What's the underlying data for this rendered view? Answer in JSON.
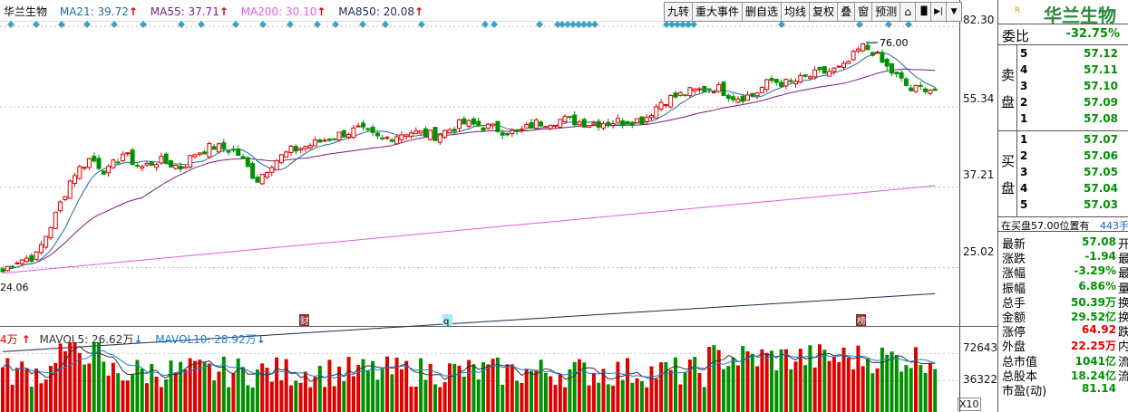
{
  "stock_name": "华兰生物",
  "legend": {
    "name": "华兰生物",
    "ma21": "MA21: 39.72",
    "ma55": "MA55: 37.71",
    "ma200": "MA200: 30.10",
    "ma850": "MA850: 20.08",
    "arrow": "↑",
    "colors": {
      "ma21": "#1a6f9b",
      "ma55": "#7a1d7a",
      "ma200": "#e55ce5",
      "ma850": "#1c2a56"
    }
  },
  "vol_legend": {
    "prefix": "4万",
    "mavol5": "MAVOL5: 26.62万",
    "mavol10": "MAVOL10: 28.92万",
    "arrow_up": "↑",
    "arrow_down": "↓"
  },
  "toolbar": [
    {
      "label": "九转"
    },
    {
      "label": "重大事件"
    },
    {
      "label": "删自选"
    },
    {
      "label": "均线"
    },
    {
      "label": "复权"
    },
    {
      "label": "叠"
    },
    {
      "label": "窗"
    },
    {
      "label": "预测"
    },
    {
      "label": "⌂"
    },
    {
      "label": "▐▌"
    },
    {
      "label": "▶|"
    },
    {
      "label": "▼"
    }
  ],
  "price_axis": [
    "82.30",
    "55.34",
    "37.21",
    "25.02"
  ],
  "volume_axis": [
    "72643",
    "36322",
    "X10"
  ],
  "annotations": {
    "high": "76.00",
    "low": "24.06",
    "marker_cai": "财",
    "marker_q": "q",
    "marker_bang": "榜"
  },
  "panel": {
    "r_badge": "R",
    "weibi_label": "委比",
    "weibi_value": "-32.75%",
    "sell_side": "卖盘",
    "buy_side": "买盘",
    "sell": [
      {
        "level": "5",
        "price": "57.12"
      },
      {
        "level": "4",
        "price": "57.11"
      },
      {
        "level": "3",
        "price": "57.10"
      },
      {
        "level": "2",
        "price": "57.09"
      },
      {
        "level": "1",
        "price": "57.08"
      }
    ],
    "buy": [
      {
        "level": "1",
        "price": "57.07"
      },
      {
        "level": "2",
        "price": "57.06"
      },
      {
        "level": "3",
        "price": "57.05"
      },
      {
        "level": "4",
        "price": "57.04"
      },
      {
        "level": "5",
        "price": "57.03"
      }
    ],
    "position_text": "在买盘57.00位置有",
    "position_num": "443手",
    "quotes": [
      {
        "key": "最新",
        "val": "57.08",
        "color": "#009000",
        "cut": "开"
      },
      {
        "key": "涨跌",
        "val": "-1.94",
        "color": "#009000",
        "cut": "最"
      },
      {
        "key": "涨幅",
        "val": "-3.29%",
        "color": "#009000",
        "cut": "最"
      },
      {
        "key": "振幅",
        "val": "6.86%",
        "color": "#009000",
        "cut": "量"
      },
      {
        "key": "总手",
        "val": "50.39万",
        "color": "#009000",
        "cut": "换"
      },
      {
        "key": "金额",
        "val": "29.52亿",
        "color": "#009000",
        "cut": "换"
      },
      {
        "key": "涨停",
        "val": "64.92",
        "color": "#e00000",
        "cut": "跌"
      },
      {
        "key": "外盘",
        "val": "22.25万",
        "color": "#e00000",
        "cut": "内"
      },
      {
        "key": "总市值",
        "val": "1041亿",
        "color": "#009000",
        "cut": "流"
      },
      {
        "key": "总股本",
        "val": "18.24亿",
        "color": "#009000",
        "cut": "流"
      },
      {
        "key": "市盈(动)",
        "val": "81.14",
        "color": "#009000",
        "cut": ""
      }
    ]
  },
  "chart_data": {
    "type": "candlestick",
    "y_axis_log": true,
    "ylim": [
      20.5,
      85
    ],
    "price_ticks": [
      82.3,
      55.34,
      37.21,
      25.02
    ],
    "annotated_high": 76.0,
    "annotated_low": 24.06,
    "last_close": 57.08,
    "moving_averages": {
      "MA21": 39.72,
      "MA55": 37.71,
      "MA200": 30.1,
      "MA850": 20.08
    },
    "volume_ticks": [
      72643,
      36322
    ],
    "volume_multiplier": "X10",
    "MAVOL5": "26.62万",
    "MAVOL10": "28.92万",
    "up_color": "#e00000",
    "down_color": "#009000"
  }
}
